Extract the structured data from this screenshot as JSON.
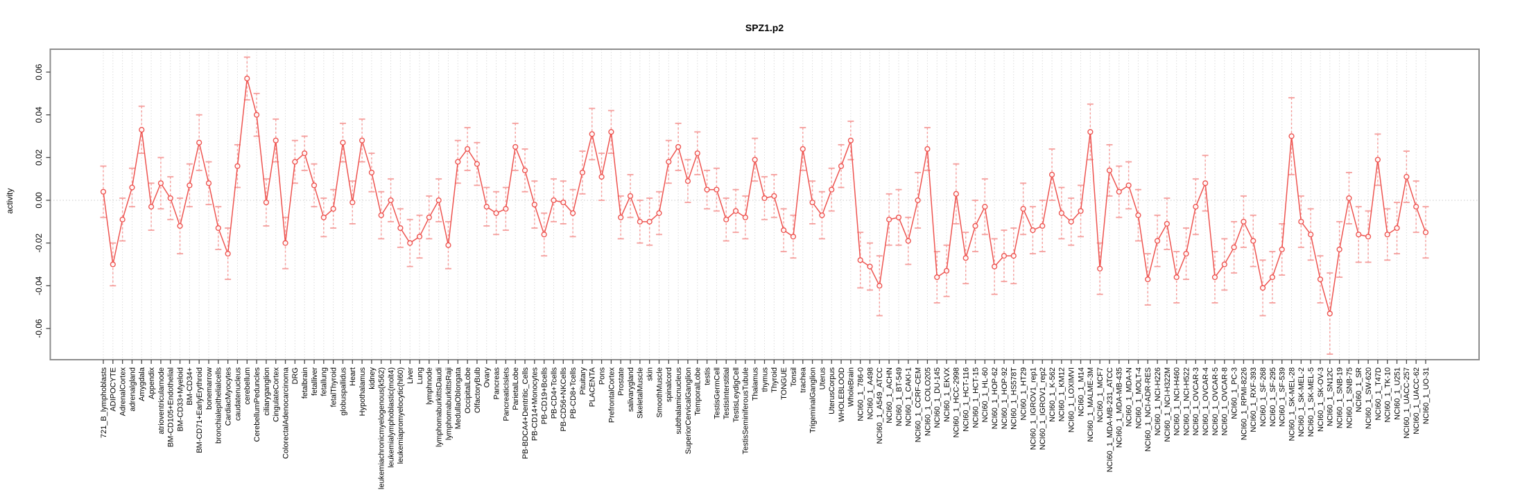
{
  "chart_data": {
    "type": "line",
    "title": "SPZ1.p2",
    "ylabel": "activity",
    "xlabel": "",
    "legend": "none",
    "grid": "vertical dashed gridline per category; dotted horizontal line at 0",
    "ylim": [
      -0.074,
      0.071
    ],
    "ytick_labels": [
      "0.06",
      "0.04",
      "0.02",
      "0.00",
      "-0.02",
      "-0.04",
      "-0.06"
    ],
    "ytick_values": [
      0.06,
      0.04,
      0.02,
      0.0,
      -0.02,
      -0.04,
      -0.06
    ],
    "marker": "open-circle",
    "error_bars": true,
    "colors": {
      "series": "#ee534f",
      "error_bar": "#f59d9b",
      "gridline": "#dcdcdc",
      "zero_line": "#c8c8c8",
      "box": "#8c8c8c",
      "tick": "#444444",
      "text": "#000000",
      "background": "#ffffff"
    },
    "categories": [
      "721_B_lymphoblasts",
      "ADIPOCYTE",
      "AdrenalCortex",
      "adrenalgland",
      "Amygdala",
      "Appendix",
      "atrioventricularnode",
      "BM-CD105+Endothelial",
      "BM-CD33+Myeloid",
      "BM-CD34+",
      "BM-CD71+EarlyErythroid",
      "bonemarrow",
      "bronchialepithelialcells",
      "CardiacMyocytes",
      "caudatenucleus",
      "cerebellum",
      "CerebellumPeduncles",
      "ciliaryganglion",
      "CingulateCortex",
      "ColorectalAdenocarcinoma",
      "DRG",
      "fetalbrain",
      "fetalliver",
      "fetallung",
      "fetalThyroid",
      "globuspallidus",
      "Heart",
      "Hypothalamus",
      "kidney",
      "leukemiachronicmyelogenous(k562)",
      "leukemialymphoblastic(molt4)",
      "leukemiapromyelocytic(hl60)",
      "Liver",
      "Lung",
      "lymphnode",
      "lymphomaburkittsDaudi",
      "lymphomaburkittsRaji",
      "MedullaOblongata",
      "OccipitalLobe",
      "OlfactoryBulb",
      "Ovary",
      "Pancreas",
      "PancreaticIslets",
      "ParietalLobe",
      "PB-BDCA4+Dentritic_Cells",
      "PB-CD14+Monocytes",
      "PB-CD19+Bcells",
      "PB-CD4+Tcells",
      "PB-CD56+NKCells",
      "PB-CD8+Tcells",
      "Pituitary",
      "PLACENTA",
      "Pons",
      "PrefrontalCortex",
      "Prostate",
      "salivarygland",
      "SkeletalMuscle",
      "skin",
      "SmoothMuscle",
      "spinalcord",
      "subthalamicnucleus",
      "SuperiorCervicalGanglion",
      "TemporalLobe",
      "testis",
      "TestisGermCell",
      "TestisInterstitial",
      "TestisLeydigCell",
      "TestisSeminiferousTubule",
      "Thalamus",
      "thymus",
      "Thyroid",
      "TONGUE",
      "Tonsil",
      "trachea",
      "TrigeminalGanglion",
      "Uterus",
      "UterusCorpus",
      "WHOLEBLOOD",
      "WholeBrain",
      "NCI60_1_786-0",
      "NCI60_1_A498",
      "NCI60_1_A549_ATCC",
      "NCI60_1_ACHN",
      "NCI60_1_BT-549",
      "NCI60_1_CAKI-1",
      "NCI60_1_CCRF-CEM",
      "NCI60_1_COLO205",
      "NCI60_1_DU-145",
      "NCI60_1_EKVX",
      "NCI60_1_HCC-2998",
      "NCI60_1_HCT-116",
      "NCI60_1_HCT-15",
      "NCI60_1_HL-60",
      "NCI60_1_HOP-62",
      "NCI60_1_HOP-92",
      "NCI60_1_HS578T",
      "NCI60_1_HT29",
      "NCI60_1_IGROV1_rep1",
      "NCI60_1_IGROV1_rep2",
      "NCI60_1_K-562",
      "NCI60_1_KM12",
      "NCI60_1_LOXIMVI",
      "NCI60_1_M14",
      "NCI60_1_MALME-3M",
      "NCI60_1_MCF7",
      "NCI60_1_MDA-MB-231_ATCC",
      "NCI60_1_MDA-MB-435",
      "NCI60_1_MDA-N",
      "NCI60_1_MOLT-4",
      "NCI60_1_NCI-ADR-RES",
      "NCI60_1_NCI-H226",
      "NCI60_1_NCI-H322M",
      "NCI60_1_NCI-H460",
      "NCI60_1_NCI-H522",
      "NCI60_1_OVCAR-3",
      "NCI60_1_OVCAR-4",
      "NCI60_1_OVCAR-5",
      "NCI60_1_OVCAR-8",
      "NCI60_1_PC-3",
      "NCI60_1_RPMI-8226",
      "NCI60_1_RXF-393",
      "NCI60_1_SF-268",
      "NCI60_1_SF-295",
      "NCI60_1_SF-539",
      "NCI60_1_SK-MEL-28",
      "NCI60_1_SK-MEL-2",
      "NCI60_1_SK-MEL-5",
      "NCI60_1_SK-OV-3",
      "NCI60_1_SN12C",
      "NCI60_1_SNB-19",
      "NCI60_1_SNB-75",
      "NCI60_1_SR",
      "NCI60_1_SW-620",
      "NCI60_1_T47D",
      "NCI60_1_TK-10",
      "NCI60_1_U251",
      "NCI60_1_UACC-257",
      "NCI60_1_UACC-62",
      "NCI60_1_UO-31"
    ],
    "values": [
      0.004,
      -0.03,
      -0.009,
      0.006,
      0.033,
      -0.003,
      0.008,
      0.001,
      -0.012,
      0.007,
      0.027,
      0.008,
      -0.013,
      -0.025,
      0.016,
      0.057,
      0.04,
      -0.001,
      0.028,
      -0.02,
      0.018,
      0.022,
      0.007,
      -0.008,
      -0.004,
      0.027,
      -0.001,
      0.028,
      0.013,
      -0.007,
      0.0,
      -0.013,
      -0.02,
      -0.017,
      -0.008,
      0.0,
      -0.021,
      0.018,
      0.024,
      0.017,
      -0.003,
      -0.006,
      -0.004,
      0.025,
      0.014,
      -0.002,
      -0.016,
      0.0,
      -0.001,
      -0.006,
      0.013,
      0.031,
      0.011,
      0.032,
      -0.008,
      0.002,
      -0.01,
      -0.01,
      -0.006,
      0.018,
      0.025,
      0.009,
      0.022,
      0.005,
      0.005,
      -0.009,
      -0.005,
      -0.008,
      0.019,
      0.001,
      0.002,
      -0.014,
      -0.017,
      0.024,
      -0.001,
      -0.007,
      0.005,
      0.016,
      0.028,
      -0.028,
      -0.031,
      -0.04,
      -0.009,
      -0.008,
      -0.019,
      0.0,
      0.024,
      -0.036,
      -0.033,
      0.003,
      -0.027,
      -0.012,
      -0.003,
      -0.031,
      -0.026,
      -0.026,
      -0.004,
      -0.014,
      -0.012,
      0.012,
      -0.006,
      -0.01,
      -0.005,
      0.032,
      -0.032,
      0.014,
      0.004,
      0.007,
      -0.007,
      -0.037,
      -0.019,
      -0.011,
      -0.036,
      -0.025,
      -0.003,
      0.008,
      -0.036,
      -0.03,
      -0.022,
      -0.01,
      -0.019,
      -0.041,
      -0.036,
      -0.023,
      0.03,
      -0.01,
      -0.016,
      -0.037,
      -0.053,
      -0.023,
      0.001,
      -0.016,
      -0.017,
      0.019,
      -0.016,
      -0.013,
      0.011,
      -0.003,
      -0.015
    ],
    "errors": [
      0.012,
      0.01,
      0.01,
      0.009,
      0.011,
      0.011,
      0.012,
      0.01,
      0.013,
      0.01,
      0.013,
      0.01,
      0.01,
      0.012,
      0.01,
      0.01,
      0.01,
      0.011,
      0.01,
      0.012,
      0.01,
      0.008,
      0.01,
      0.009,
      0.009,
      0.009,
      0.01,
      0.01,
      0.009,
      0.011,
      0.01,
      0.009,
      0.011,
      0.01,
      0.01,
      0.01,
      0.011,
      0.01,
      0.01,
      0.01,
      0.009,
      0.01,
      0.01,
      0.011,
      0.01,
      0.011,
      0.01,
      0.01,
      0.01,
      0.011,
      0.01,
      0.012,
      0.011,
      0.01,
      0.01,
      0.01,
      0.01,
      0.011,
      0.01,
      0.01,
      0.011,
      0.01,
      0.01,
      0.009,
      0.01,
      0.01,
      0.01,
      0.01,
      0.01,
      0.01,
      0.01,
      0.01,
      0.01,
      0.01,
      0.01,
      0.011,
      0.01,
      0.01,
      0.009,
      0.013,
      0.011,
      0.014,
      0.012,
      0.013,
      0.011,
      0.013,
      0.01,
      0.012,
      0.012,
      0.014,
      0.012,
      0.012,
      0.013,
      0.013,
      0.012,
      0.013,
      0.012,
      0.011,
      0.012,
      0.012,
      0.012,
      0.011,
      0.012,
      0.013,
      0.012,
      0.012,
      0.012,
      0.011,
      0.012,
      0.012,
      0.012,
      0.012,
      0.012,
      0.012,
      0.013,
      0.013,
      0.012,
      0.012,
      0.012,
      0.012,
      0.012,
      0.013,
      0.012,
      0.012,
      0.018,
      0.012,
      0.012,
      0.011,
      0.019,
      0.013,
      0.012,
      0.013,
      0.012,
      0.012,
      0.012,
      0.012,
      0.012,
      0.012,
      0.012
    ]
  }
}
